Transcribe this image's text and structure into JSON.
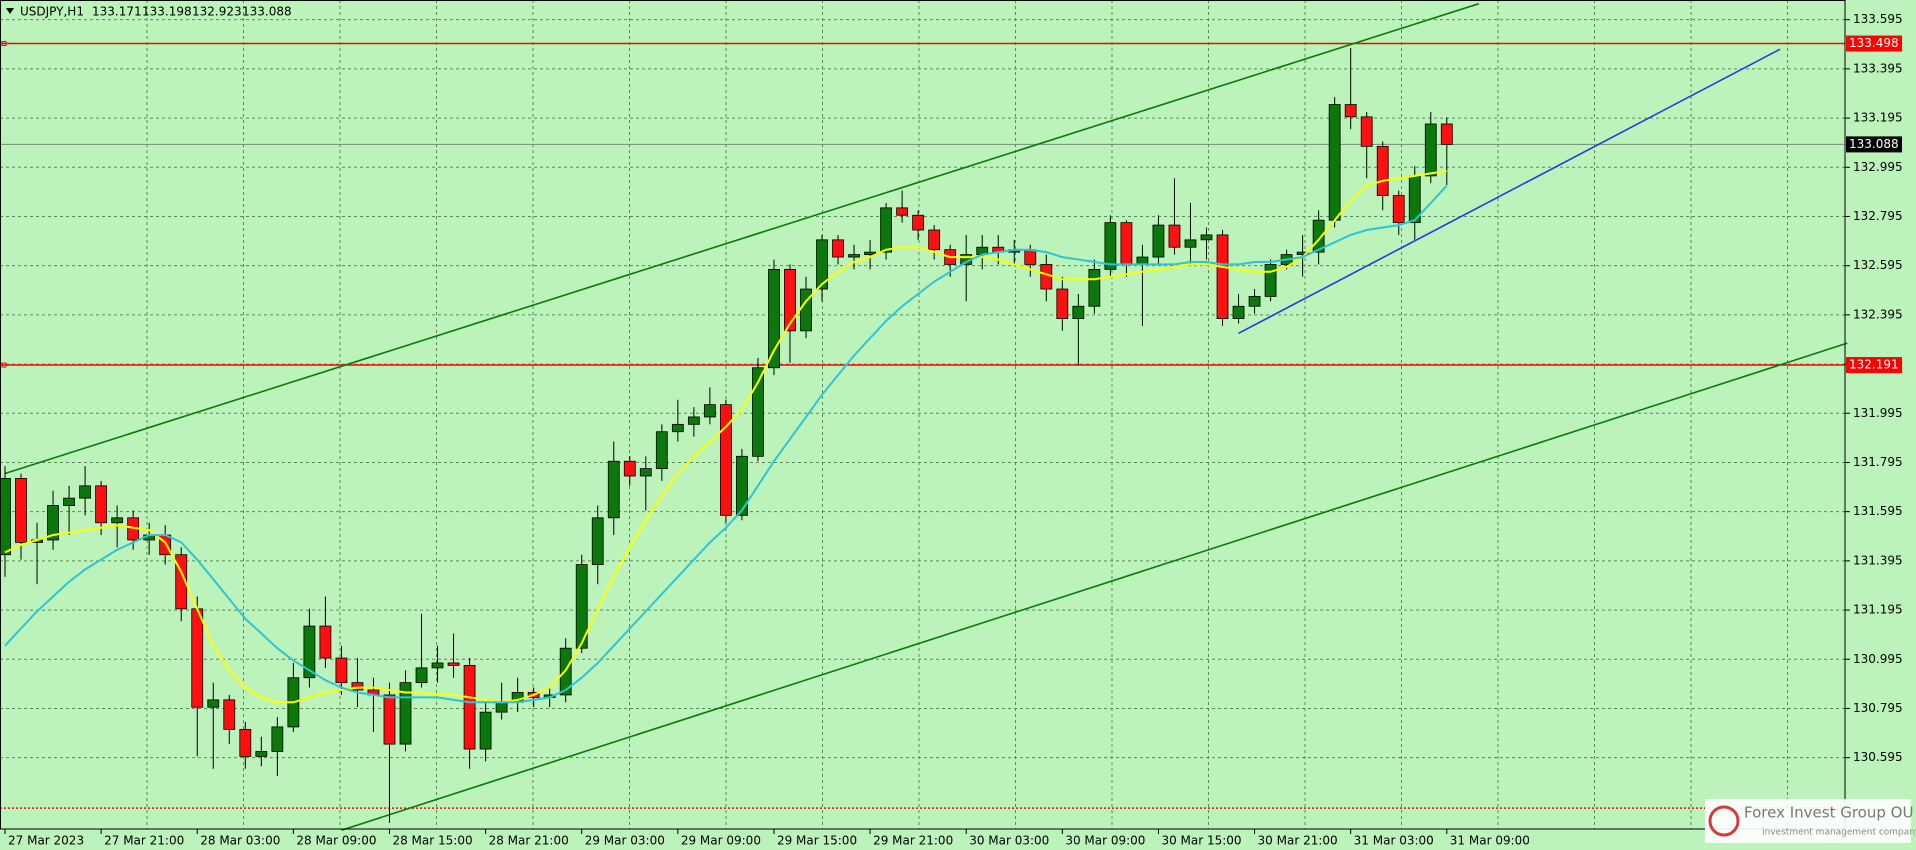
{
  "chart_data": {
    "type": "candlestick",
    "symbol": "USDJPY,H1",
    "background": "#bbf3bb",
    "bull_color": "#0b780b",
    "bear_color": "#ff1010",
    "categories": [
      "27 Mar 2023",
      null,
      null,
      null,
      null,
      null,
      "27 Mar 21:00",
      null,
      null,
      null,
      null,
      null,
      "28 Mar 03:00",
      null,
      null,
      null,
      null,
      null,
      "28 Mar 09:00",
      null,
      null,
      null,
      null,
      null,
      "28 Mar 15:00",
      null,
      null,
      null,
      null,
      null,
      "28 Mar 21:00",
      null,
      null,
      null,
      null,
      null,
      "29 Mar 03:00",
      null,
      null,
      null,
      null,
      null,
      "29 Mar 09:00",
      null,
      null,
      null,
      null,
      null,
      "29 Mar 15:00",
      null,
      null,
      null,
      null,
      null,
      "29 Mar 21:00",
      null,
      null,
      null,
      null,
      null,
      "30 Mar 03:00",
      null,
      null,
      null,
      null,
      null,
      "30 Mar 09:00",
      null,
      null,
      null,
      null,
      null,
      "30 Mar 15:00",
      null,
      null,
      null,
      null,
      null,
      "30 Mar 21:00",
      null,
      null,
      null,
      null,
      null,
      "31 Mar 03:00",
      null,
      null,
      null,
      null,
      null,
      "31 Mar 09:00"
    ],
    "open": [
      131.42,
      131.73,
      131.47,
      131.48,
      131.62,
      131.65,
      131.7,
      131.55,
      131.57,
      131.48,
      131.5,
      131.42,
      131.2,
      130.8,
      130.83,
      130.71,
      130.6,
      130.62,
      130.72,
      130.92,
      131.13,
      131.0,
      130.9,
      130.87,
      130.85,
      130.65,
      130.9,
      130.96,
      130.98,
      130.97,
      130.63,
      130.78,
      130.82,
      130.86,
      130.84,
      130.85,
      131.04,
      131.38,
      131.57,
      131.8,
      131.74,
      131.77,
      131.92,
      131.95,
      131.98,
      132.03,
      131.58,
      131.82,
      132.18,
      132.58,
      132.33,
      132.5,
      132.7,
      132.63,
      132.64,
      132.65,
      132.83,
      132.8,
      132.74,
      132.66,
      132.6,
      132.64,
      132.67,
      132.65,
      132.66,
      132.6,
      132.5,
      132.38,
      132.43,
      132.58,
      132.77,
      132.6,
      132.63,
      132.76,
      132.67,
      132.7,
      132.72,
      132.38,
      132.43,
      132.47,
      132.6,
      132.64,
      132.65,
      132.78,
      133.25,
      133.2,
      133.08,
      132.88,
      132.77,
      132.96,
      133.171
    ],
    "high": [
      131.78,
      131.75,
      131.55,
      131.68,
      131.7,
      131.78,
      131.72,
      131.62,
      131.6,
      131.55,
      131.54,
      131.45,
      131.25,
      130.9,
      130.85,
      130.74,
      130.68,
      130.76,
      130.98,
      131.2,
      131.25,
      131.05,
      131.0,
      130.92,
      130.9,
      130.95,
      131.18,
      131.05,
      131.1,
      131.0,
      130.82,
      130.9,
      130.92,
      130.88,
      130.88,
      131.08,
      131.42,
      131.62,
      131.88,
      131.82,
      131.82,
      131.95,
      132.05,
      132.02,
      132.1,
      132.05,
      131.85,
      132.22,
      132.62,
      132.6,
      132.55,
      132.72,
      132.72,
      132.68,
      132.7,
      132.85,
      132.9,
      132.82,
      132.76,
      132.68,
      132.72,
      132.72,
      132.72,
      132.7,
      132.68,
      132.64,
      132.55,
      132.48,
      132.62,
      132.8,
      132.78,
      132.68,
      132.8,
      132.95,
      132.85,
      132.75,
      132.74,
      132.48,
      132.5,
      132.62,
      132.66,
      132.72,
      132.82,
      133.28,
      133.48,
      133.22,
      133.1,
      132.9,
      133.0,
      133.22,
      133.198
    ],
    "low": [
      131.33,
      131.4,
      131.3,
      131.44,
      131.5,
      131.58,
      131.5,
      131.45,
      131.44,
      131.42,
      131.38,
      131.15,
      130.6,
      130.55,
      130.65,
      130.55,
      130.56,
      130.52,
      130.7,
      130.88,
      130.96,
      130.85,
      130.8,
      130.7,
      130.33,
      130.62,
      130.88,
      130.9,
      130.92,
      130.55,
      130.58,
      130.75,
      130.78,
      130.8,
      130.8,
      130.82,
      131.02,
      131.3,
      131.5,
      131.7,
      131.6,
      131.72,
      131.88,
      131.9,
      131.95,
      131.55,
      131.56,
      131.8,
      132.15,
      132.2,
      132.3,
      132.45,
      132.6,
      132.58,
      132.58,
      132.62,
      132.77,
      132.7,
      132.62,
      132.55,
      132.45,
      132.58,
      132.6,
      132.6,
      132.55,
      132.45,
      132.33,
      132.19,
      132.4,
      132.55,
      132.55,
      132.35,
      132.6,
      132.64,
      132.6,
      132.62,
      132.35,
      132.36,
      132.4,
      132.45,
      132.58,
      132.55,
      132.6,
      132.75,
      133.15,
      132.95,
      132.82,
      132.72,
      132.7,
      132.93,
      132.923
    ],
    "close": [
      131.73,
      131.47,
      131.48,
      131.62,
      131.65,
      131.7,
      131.55,
      131.57,
      131.48,
      131.5,
      131.42,
      131.2,
      130.8,
      130.83,
      130.71,
      130.6,
      130.62,
      130.72,
      130.92,
      131.13,
      131.0,
      130.9,
      130.87,
      130.85,
      130.65,
      130.9,
      130.96,
      130.98,
      130.97,
      130.63,
      130.78,
      130.82,
      130.86,
      130.84,
      130.85,
      131.04,
      131.38,
      131.57,
      131.8,
      131.74,
      131.77,
      131.92,
      131.95,
      131.98,
      132.03,
      131.58,
      131.82,
      132.18,
      132.58,
      132.33,
      132.5,
      132.7,
      132.63,
      132.64,
      132.65,
      132.83,
      132.8,
      132.74,
      132.66,
      132.6,
      132.64,
      132.67,
      132.65,
      132.66,
      132.6,
      132.5,
      132.38,
      132.43,
      132.58,
      132.77,
      132.6,
      132.63,
      132.76,
      132.67,
      132.7,
      132.72,
      132.38,
      132.43,
      132.47,
      132.6,
      132.64,
      132.65,
      132.78,
      133.25,
      133.2,
      133.08,
      132.88,
      132.77,
      132.96,
      133.171,
      133.088
    ],
    "indicators": [
      {
        "color": "#ffff00",
        "values": [
          131.43,
          131.46,
          131.48,
          131.5,
          131.51,
          131.52,
          131.53,
          131.54,
          131.53,
          131.52,
          131.47,
          131.35,
          131.2,
          131.05,
          130.95,
          130.88,
          130.84,
          130.82,
          130.82,
          130.84,
          130.86,
          130.87,
          130.88,
          130.88,
          130.87,
          130.86,
          130.86,
          130.85,
          130.85,
          130.84,
          130.83,
          130.82,
          130.83,
          130.85,
          130.88,
          130.95,
          131.06,
          131.2,
          131.33,
          131.45,
          131.56,
          131.66,
          131.75,
          131.82,
          131.88,
          131.94,
          132.01,
          132.12,
          132.25,
          132.36,
          132.45,
          132.52,
          132.57,
          132.61,
          132.63,
          132.66,
          132.67,
          132.67,
          132.65,
          132.63,
          132.63,
          132.63,
          132.62,
          132.6,
          132.58,
          132.56,
          132.54,
          132.54,
          132.54,
          132.55,
          132.56,
          132.57,
          132.58,
          132.59,
          132.6,
          132.6,
          132.59,
          132.58,
          132.57,
          132.57,
          132.59,
          132.63,
          132.7,
          132.78,
          132.86,
          132.92,
          132.94,
          132.95,
          132.96,
          132.97,
          132.98
        ]
      },
      {
        "color": "#2ec4d6",
        "values": [
          131.05,
          131.12,
          131.19,
          131.25,
          131.31,
          131.36,
          131.4,
          131.44,
          131.47,
          131.5,
          131.5,
          131.47,
          131.4,
          131.32,
          131.24,
          131.16,
          131.1,
          131.04,
          130.99,
          130.95,
          130.91,
          130.88,
          130.86,
          130.85,
          130.84,
          130.84,
          130.84,
          130.84,
          130.83,
          130.82,
          130.82,
          130.82,
          130.82,
          130.83,
          130.84,
          130.87,
          130.92,
          130.98,
          131.05,
          131.12,
          131.19,
          131.26,
          131.33,
          131.4,
          131.47,
          131.53,
          131.6,
          131.7,
          131.8,
          131.89,
          131.98,
          132.07,
          132.15,
          132.23,
          132.3,
          132.37,
          132.43,
          132.48,
          132.53,
          132.57,
          132.61,
          132.64,
          132.65,
          132.66,
          132.66,
          132.65,
          132.63,
          132.62,
          132.61,
          132.6,
          132.6,
          132.6,
          132.6,
          132.6,
          132.61,
          132.61,
          132.6,
          132.6,
          132.61,
          132.61,
          132.62,
          132.63,
          132.66,
          132.69,
          132.72,
          132.74,
          132.75,
          132.76,
          132.78,
          132.85,
          132.92
        ]
      }
    ],
    "trendlines": [
      {
        "color": "#0a7a0a",
        "x": [
          0,
          92
        ],
        "y": [
          131.75,
          133.66
        ]
      },
      {
        "color": "#0a7a0a",
        "x": [
          21,
          115
        ],
        "y": [
          130.3,
          132.28
        ]
      },
      {
        "color": "#2040d8",
        "x": [
          77,
          110.8
        ],
        "y": [
          132.32,
          133.475
        ]
      }
    ],
    "hlines": [
      {
        "value": 133.498,
        "color": "#ff0000",
        "labeled": true
      },
      {
        "value": 132.191,
        "color": "#ff0000",
        "labeled": true
      },
      {
        "value": 130.39,
        "color": "#ff0000",
        "labeled": false
      }
    ],
    "ylim": [
      130.305,
      133.675
    ],
    "yticks": [
      133.595,
      133.395,
      133.195,
      132.995,
      132.795,
      132.595,
      132.395,
      132.195,
      131.995,
      131.795,
      131.595,
      131.395,
      131.195,
      130.995,
      130.795,
      130.595
    ],
    "grid": true,
    "watermark": {
      "title": "Forex Invest Group OU",
      "subtitle": "investment management company"
    }
  }
}
